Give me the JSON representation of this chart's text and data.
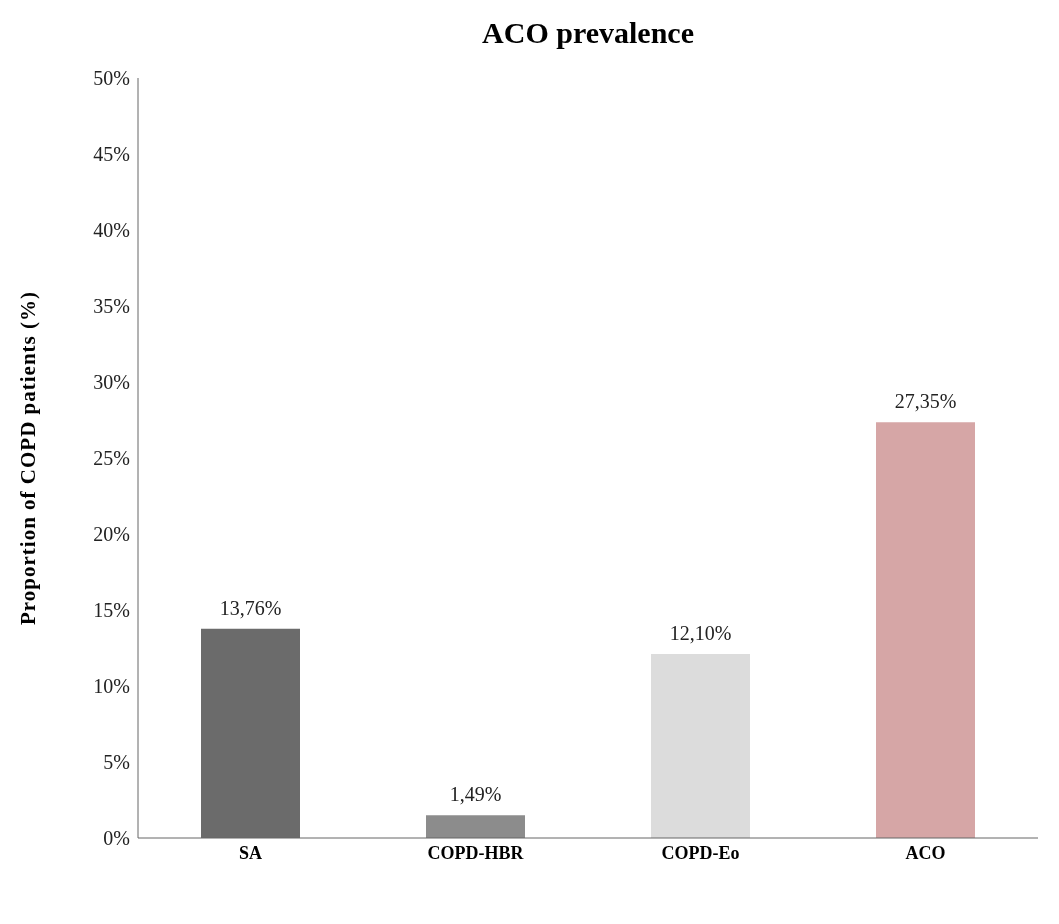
{
  "chart_data": {
    "type": "bar",
    "title": "ACO prevalence",
    "ylabel": "Proportion of COPD patients  (%)",
    "categories": [
      "SA",
      "COPD-HBR",
      "COPD-Eo",
      "ACO"
    ],
    "values": [
      13.76,
      1.49,
      12.1,
      27.35
    ],
    "colors": [
      "#6b6b6b",
      "#8c8c8c",
      "#dcdcdc",
      "#d6a6a6"
    ],
    "value_labels": [
      "13,76%",
      "1,49%",
      "12,10%",
      "27,35%"
    ],
    "ylim": [
      0,
      50
    ],
    "yticks": [
      {
        "value": 0,
        "label": "0%"
      },
      {
        "value": 5,
        "label": "5%"
      },
      {
        "value": 10,
        "label": "10%"
      },
      {
        "value": 15,
        "label": "15%"
      },
      {
        "value": 20,
        "label": "20%"
      },
      {
        "value": 25,
        "label": "25%"
      },
      {
        "value": 30,
        "label": "30%"
      },
      {
        "value": 35,
        "label": "35%"
      },
      {
        "value": 40,
        "label": "40%"
      },
      {
        "value": 45,
        "label": "45%"
      },
      {
        "value": 50,
        "label": "50%"
      }
    ],
    "grid": false,
    "legend": false
  }
}
